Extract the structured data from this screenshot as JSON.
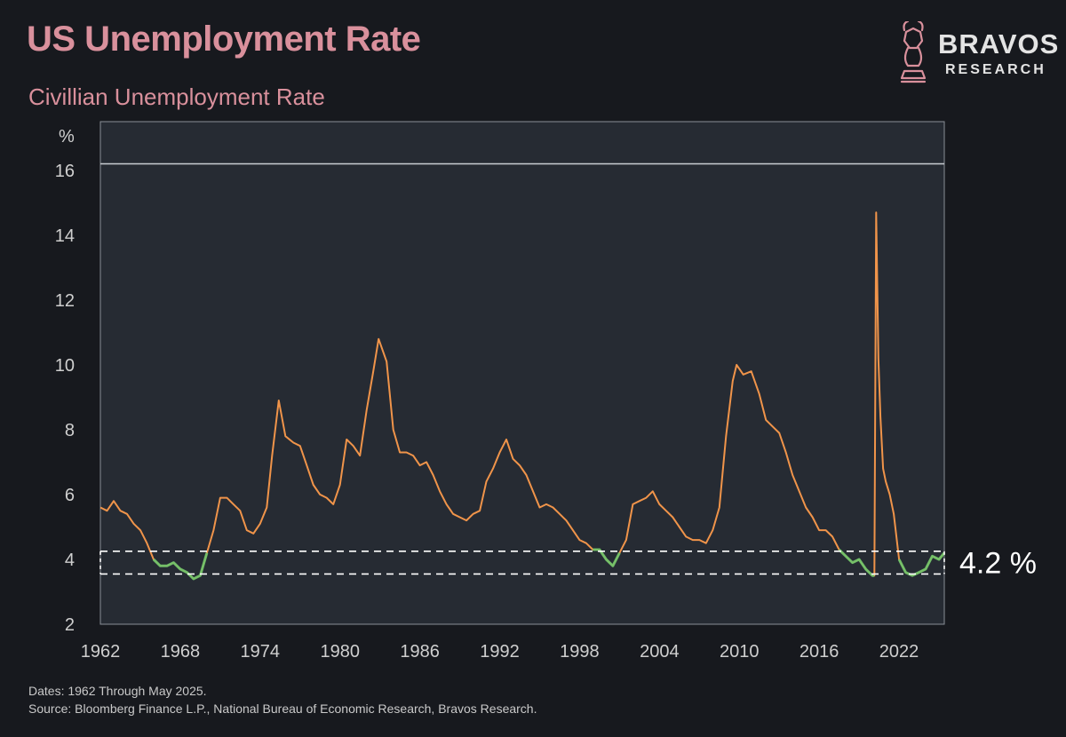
{
  "header": {
    "title": "US Unemployment Rate",
    "subtitle": "Civillian Unemployment Rate"
  },
  "brand": {
    "name": "BRAVOS",
    "tagline": "RESEARCH",
    "accent": "#d9909c"
  },
  "footer": {
    "line1": "Dates: 1962 Through May 2025.",
    "line2": "Source: Bloomberg Finance L.P., National Bureau of Economic Research, Bravos Research."
  },
  "colors": {
    "background": "#17191e",
    "plot_background": "#262b33",
    "line": "#f0944a",
    "low_highlight": "#6cc46c",
    "band": "#ffffff",
    "axis_text": "#cfcfcf"
  },
  "chart_data": {
    "type": "line",
    "title": "US Unemployment Rate",
    "subtitle": "Civillian Unemployment Rate",
    "xlabel": "",
    "ylabel": "%",
    "xlim": [
      1962,
      2025.4
    ],
    "ylim": [
      2,
      17.5
    ],
    "x_ticks": [
      "1962",
      "1968",
      "1974",
      "1980",
      "1986",
      "1992",
      "1998",
      "2004",
      "2010",
      "2016",
      "2022"
    ],
    "y_ticks": [
      "2",
      "4",
      "6",
      "8",
      "10",
      "12",
      "14",
      "16"
    ],
    "reference_line": 16.2,
    "band": {
      "low": 3.55,
      "high": 4.25,
      "label": "4.2 %",
      "highlight_below": 4.3
    },
    "series": [
      {
        "name": "Unemployment Rate",
        "x": [
          1962.0,
          1962.5,
          1963.0,
          1963.5,
          1964.0,
          1964.5,
          1965.0,
          1965.5,
          1966.0,
          1966.5,
          1967.0,
          1967.5,
          1968.0,
          1968.5,
          1969.0,
          1969.5,
          1970.0,
          1970.5,
          1971.0,
          1971.5,
          1972.0,
          1972.5,
          1973.0,
          1973.5,
          1974.0,
          1974.5,
          1974.9,
          1975.4,
          1975.9,
          1976.5,
          1977.0,
          1977.5,
          1978.0,
          1978.5,
          1979.0,
          1979.5,
          1980.0,
          1980.5,
          1981.0,
          1981.5,
          1982.0,
          1982.5,
          1982.9,
          1983.5,
          1984.0,
          1984.5,
          1985.0,
          1985.5,
          1986.0,
          1986.5,
          1987.0,
          1987.5,
          1988.0,
          1988.5,
          1989.0,
          1989.5,
          1990.0,
          1990.5,
          1991.0,
          1991.5,
          1992.0,
          1992.5,
          1993.0,
          1993.5,
          1994.0,
          1994.5,
          1995.0,
          1995.5,
          1996.0,
          1996.5,
          1997.0,
          1997.5,
          1998.0,
          1998.5,
          1999.0,
          1999.5,
          2000.0,
          2000.5,
          2001.0,
          2001.5,
          2002.0,
          2002.5,
          2003.0,
          2003.5,
          2004.0,
          2004.5,
          2005.0,
          2005.5,
          2006.0,
          2006.5,
          2007.0,
          2007.5,
          2008.0,
          2008.5,
          2009.0,
          2009.5,
          2009.8,
          2010.3,
          2010.9,
          2011.5,
          2012.0,
          2012.5,
          2013.0,
          2013.5,
          2014.0,
          2014.5,
          2015.0,
          2015.5,
          2016.0,
          2016.5,
          2017.0,
          2017.5,
          2018.0,
          2018.5,
          2019.0,
          2019.5,
          2020.0,
          2020.15,
          2020.28,
          2020.45,
          2020.6,
          2020.8,
          2021.0,
          2021.3,
          2021.6,
          2022.0,
          2022.5,
          2023.0,
          2023.5,
          2024.0,
          2024.5,
          2025.0,
          2025.4
        ],
        "values": [
          5.6,
          5.5,
          5.8,
          5.5,
          5.4,
          5.1,
          4.9,
          4.5,
          4.0,
          3.8,
          3.8,
          3.9,
          3.7,
          3.6,
          3.4,
          3.5,
          4.2,
          4.9,
          5.9,
          5.9,
          5.7,
          5.5,
          4.9,
          4.8,
          5.1,
          5.6,
          7.2,
          8.9,
          7.8,
          7.6,
          7.5,
          6.9,
          6.3,
          6.0,
          5.9,
          5.7,
          6.3,
          7.7,
          7.5,
          7.2,
          8.6,
          9.8,
          10.8,
          10.1,
          8.0,
          7.3,
          7.3,
          7.2,
          6.9,
          7.0,
          6.6,
          6.1,
          5.7,
          5.4,
          5.3,
          5.2,
          5.4,
          5.5,
          6.4,
          6.8,
          7.3,
          7.7,
          7.1,
          6.9,
          6.6,
          6.1,
          5.6,
          5.7,
          5.6,
          5.4,
          5.2,
          4.9,
          4.6,
          4.5,
          4.3,
          4.3,
          4.0,
          3.8,
          4.2,
          4.6,
          5.7,
          5.8,
          5.9,
          6.1,
          5.7,
          5.5,
          5.3,
          5.0,
          4.7,
          4.6,
          4.6,
          4.5,
          4.9,
          5.6,
          7.8,
          9.5,
          10.0,
          9.7,
          9.8,
          9.1,
          8.3,
          8.1,
          7.9,
          7.3,
          6.6,
          6.1,
          5.6,
          5.3,
          4.9,
          4.9,
          4.7,
          4.3,
          4.1,
          3.9,
          4.0,
          3.7,
          3.5,
          3.5,
          14.7,
          10.2,
          8.4,
          6.8,
          6.4,
          6.0,
          5.4,
          4.0,
          3.6,
          3.5,
          3.6,
          3.7,
          4.1,
          4.0,
          4.2
        ]
      }
    ]
  }
}
